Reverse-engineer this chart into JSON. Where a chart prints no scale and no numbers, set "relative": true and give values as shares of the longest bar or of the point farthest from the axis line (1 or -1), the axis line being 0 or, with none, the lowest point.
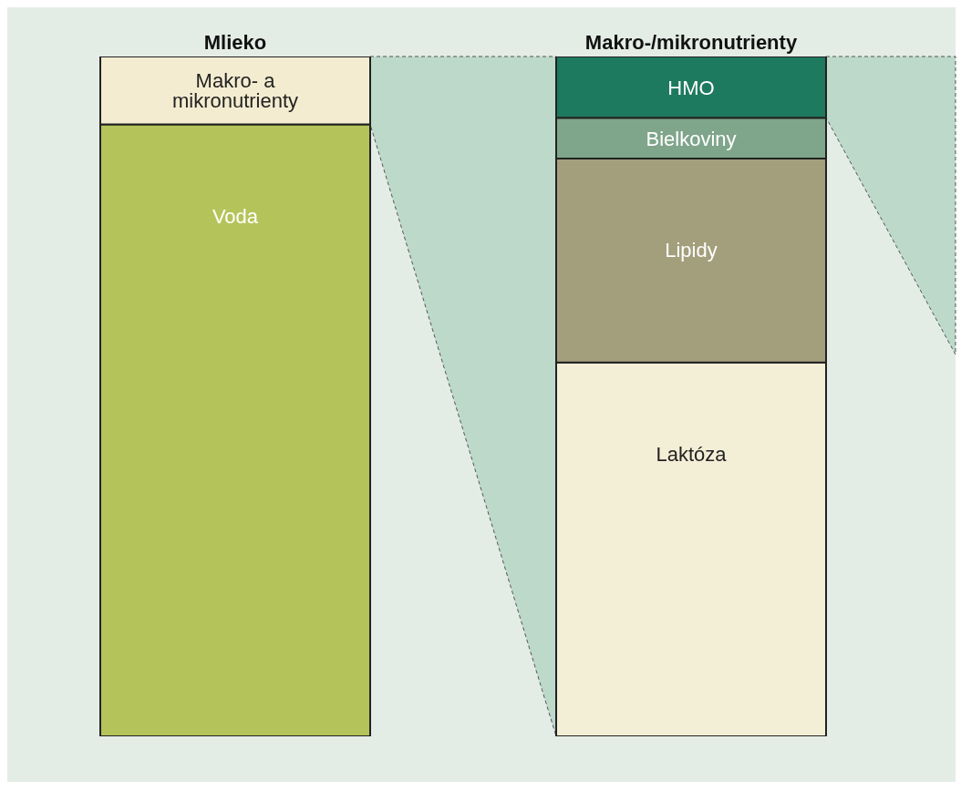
{
  "chart_data": {
    "type": "bar",
    "stacked": true,
    "relative": true,
    "categories": [
      "Mlieko",
      "Makro-/mikronutrienty"
    ],
    "series": [
      {
        "name": "Voda",
        "color": "#b5c45a",
        "values": [
          0.9,
          null
        ]
      },
      {
        "name": "Laktóza",
        "color": "#f3eed6",
        "values": [
          null,
          0.55
        ]
      },
      {
        "name": "Lipidy",
        "color": "#a39e7c",
        "values": [
          null,
          0.3
        ]
      },
      {
        "name": "Bielkoviny",
        "color": "#7fa58a",
        "values": [
          null,
          0.06
        ]
      },
      {
        "name": "HMO",
        "color": "#1e7a5e",
        "values": [
          null,
          0.09
        ]
      },
      {
        "name": "Makro- a mikronutrienty",
        "color": "#f3ecd0",
        "values": [
          0.1,
          null
        ]
      }
    ]
  }
}
